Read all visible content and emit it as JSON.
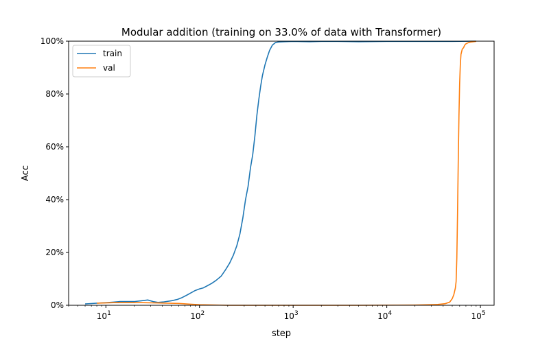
{
  "chart_data": {
    "type": "line",
    "title": "Modular addition (training on 33.0% of data with Transformer)",
    "xlabel": "step",
    "ylabel": "Acc",
    "xscale": "log",
    "xlim": [
      4,
      140000
    ],
    "ylim": [
      0,
      100
    ],
    "x_ticks": [
      {
        "value": 10,
        "base": "10",
        "exp": "1"
      },
      {
        "value": 100,
        "base": "10",
        "exp": "2"
      },
      {
        "value": 1000,
        "base": "10",
        "exp": "3"
      },
      {
        "value": 10000,
        "base": "10",
        "exp": "4"
      },
      {
        "value": 100000,
        "base": "10",
        "exp": "5"
      }
    ],
    "y_ticks": [
      {
        "value": 0,
        "label": "0%"
      },
      {
        "value": 20,
        "label": "20%"
      },
      {
        "value": 40,
        "label": "40%"
      },
      {
        "value": 60,
        "label": "60%"
      },
      {
        "value": 80,
        "label": "80%"
      },
      {
        "value": 100,
        "label": "100%"
      }
    ],
    "grid": false,
    "legend_position": "top-left",
    "series": [
      {
        "name": "train",
        "color": "#1f77b4",
        "x": [
          6,
          8,
          10,
          12,
          14,
          17,
          20,
          24,
          28,
          32,
          36,
          42,
          50,
          58,
          65,
          72,
          80,
          90,
          100,
          110,
          120,
          135,
          150,
          170,
          190,
          210,
          230,
          250,
          270,
          290,
          310,
          330,
          350,
          370,
          390,
          410,
          430,
          450,
          470,
          500,
          530,
          560,
          600,
          650,
          700,
          800,
          1000,
          1500,
          2000,
          3000,
          5000,
          10000,
          20000,
          50000,
          90000
        ],
        "y": [
          0.5,
          0.8,
          1.0,
          1.2,
          1.4,
          1.4,
          1.4,
          1.7,
          2.0,
          1.4,
          1.1,
          1.3,
          1.7,
          2.2,
          2.9,
          3.7,
          4.6,
          5.6,
          6.2,
          6.6,
          7.3,
          8.3,
          9.4,
          11.0,
          13.5,
          16.0,
          19.0,
          22.5,
          27.0,
          33.0,
          40.0,
          45.0,
          52.0,
          57.0,
          64.0,
          72.0,
          78.0,
          83.0,
          87.0,
          91.0,
          94.0,
          96.5,
          98.5,
          99.5,
          99.7,
          99.8,
          99.9,
          99.8,
          99.9,
          99.9,
          99.8,
          99.9,
          99.9,
          99.9,
          100
        ]
      },
      {
        "name": "val",
        "color": "#ff7f0e",
        "x": [
          8,
          12,
          18,
          25,
          35,
          45,
          60,
          80,
          100,
          150,
          200,
          500,
          1000,
          5000,
          20000,
          35000,
          42000,
          47000,
          50000,
          52000,
          54000,
          55000,
          56000,
          57000,
          58000,
          59000,
          60000,
          61000,
          62000,
          64000,
          66000,
          68000,
          70000,
          75000,
          80000,
          90000
        ],
        "y": [
          0.8,
          1.0,
          1.0,
          1.0,
          0.9,
          0.8,
          0.7,
          0.4,
          0.2,
          0.1,
          0.0,
          0.0,
          0.0,
          0.0,
          0.1,
          0.3,
          0.6,
          1.2,
          2.5,
          4.0,
          6.5,
          9.0,
          18.0,
          35.0,
          55.0,
          72.0,
          84.0,
          91.0,
          95.0,
          97.0,
          97.5,
          98.5,
          99.0,
          99.5,
          99.7,
          99.9
        ]
      }
    ]
  }
}
